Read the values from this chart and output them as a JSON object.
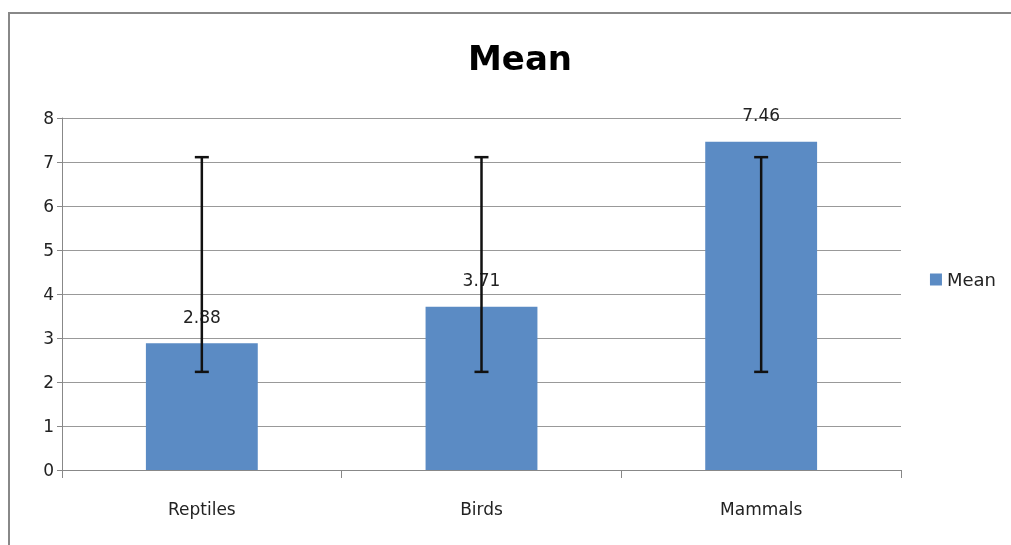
{
  "chart_data": {
    "type": "bar",
    "title": "Mean",
    "categories": [
      "Reptiles",
      "Birds",
      "Mammals"
    ],
    "series": [
      {
        "name": "Mean",
        "color": "#5b8bc4",
        "values": [
          2.88,
          3.71,
          7.46
        ],
        "errors": [
          [
            2.23,
            7.11
          ],
          [
            2.23,
            7.11
          ],
          [
            2.23,
            7.11
          ]
        ]
      }
    ],
    "data_labels": true,
    "ylim": [
      0,
      8
    ],
    "yticks": [
      0,
      1,
      2,
      3,
      4,
      5,
      6,
      7,
      8
    ],
    "grid": "y",
    "legend": "right"
  }
}
